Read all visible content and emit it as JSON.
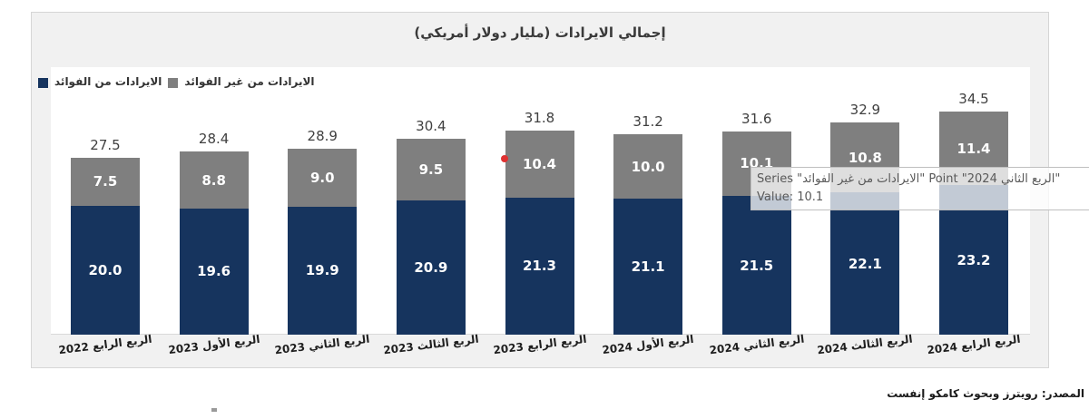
{
  "title": "إجمالي الايرادات (مليار دولار أمريكي)",
  "colors": {
    "interest_blue": "#16345e",
    "non_interest_gray": "#7f7f7f",
    "panel_bg": "#f1f1f1",
    "panel_border": "#d6d6d6",
    "red_marker": "#e03131"
  },
  "legend": {
    "items": [
      {
        "label": "الايرادات من الفوائد",
        "color": "#16345e"
      },
      {
        "label": "الايرادات من غير الفوائد",
        "color": "#7f7f7f"
      }
    ]
  },
  "chart_data": {
    "type": "bar",
    "stacked": true,
    "title": "إجمالي الايرادات (مليار دولار أمريكي)",
    "categories": [
      "الربع الرابع 2022",
      "الربع الأول 2023",
      "الربع الثاني 2023",
      "الربع الثالث 2023",
      "الربع الرابع 2023",
      "الربع الأول 2024",
      "الربع الثاني 2024",
      "الربع الثالث 2024",
      "الربع الرابع 2024"
    ],
    "series": [
      {
        "name": "الايرادات من الفوائد",
        "color": "#16345e",
        "values": [
          20.0,
          19.6,
          19.9,
          20.9,
          21.3,
          21.1,
          21.5,
          22.1,
          23.2
        ]
      },
      {
        "name": "الايرادات من غير الفوائد",
        "color": "#7f7f7f",
        "values": [
          7.5,
          8.8,
          9.0,
          9.5,
          10.4,
          10.0,
          10.1,
          10.8,
          11.4
        ]
      }
    ],
    "totals": [
      27.5,
      28.4,
      28.9,
      30.4,
      31.8,
      31.2,
      31.6,
      32.9,
      34.5
    ],
    "ylim": [
      0,
      40
    ],
    "grid": false,
    "value_labels": "inside-center",
    "legend_position": "top-left"
  },
  "tooltip": {
    "line1": "Series \"الايرادات من غير الفوائد\" Point \"الربع الثاني 2024\"",
    "value_label": "Value:",
    "value": "10.1"
  },
  "source": "المصدر: رويترز وبحوث كامكو إنفست"
}
